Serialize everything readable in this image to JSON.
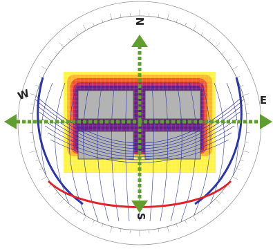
{
  "compass": {
    "north": "N",
    "south": "S",
    "east": "E",
    "west": "W"
  },
  "colors": {
    "arrow": "#5f9e2f",
    "sunpath": "#2a35a8",
    "summer_arc": "#2a35a8",
    "winter_arc": "#e0232b",
    "building": "#b3b3b3",
    "heat_hot": "#5b1a82",
    "heat_warm": "#e63a2a",
    "heat_mid": "#ff9a1f",
    "heat_cool": "#fff23a"
  },
  "icons": {
    "arrow": "double-headed-arrow-icon"
  }
}
